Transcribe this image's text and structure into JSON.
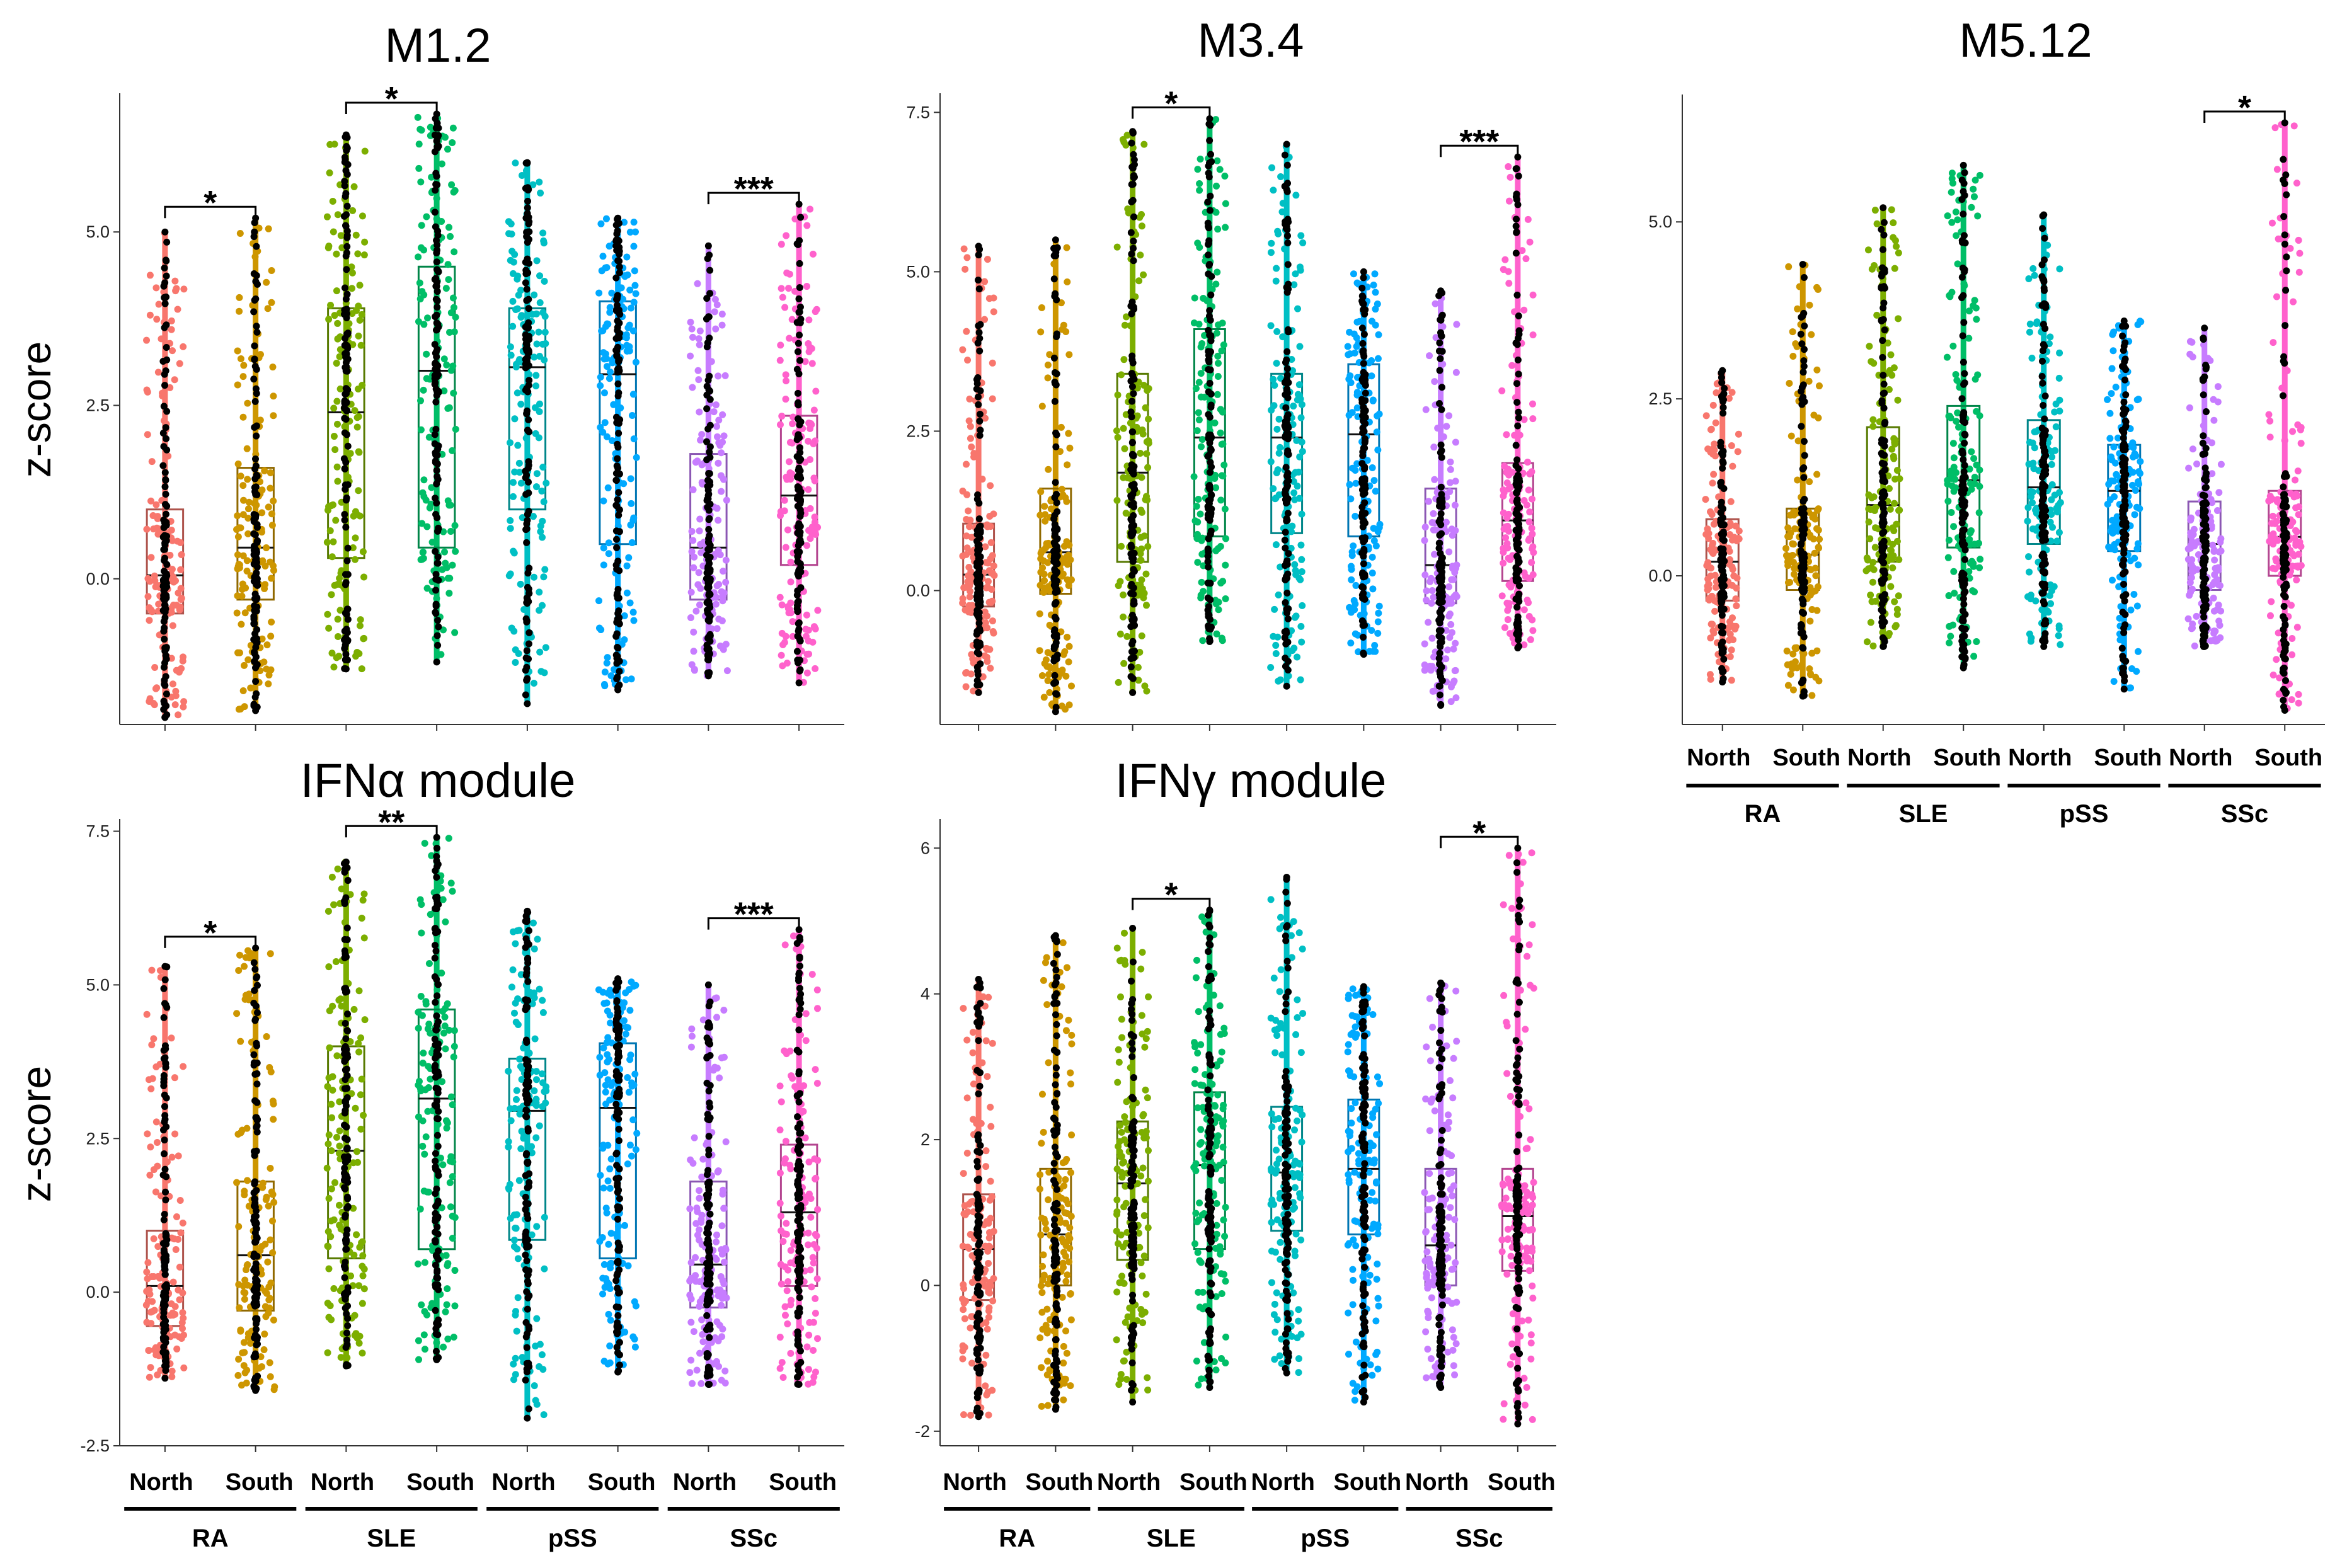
{
  "chart_data": [
    {
      "type": "box",
      "title": "M1.2",
      "ylabel": "z-score",
      "ylim": [
        -2.1,
        7.0
      ],
      "yticks": [
        "0.0",
        "2.5",
        "5.0"
      ],
      "categories": [
        "North",
        "South",
        "North",
        "South",
        "North",
        "South",
        "North",
        "South"
      ],
      "groups": [
        "RA",
        "SLE",
        "pSS",
        "SSc"
      ],
      "colors": [
        "#F8766D",
        "#CD9600",
        "#7CAE00",
        "#00BE67",
        "#00BFC4",
        "#00A9FF",
        "#C77CFF",
        "#FF61CC"
      ],
      "boxes": [
        {
          "min": -2.0,
          "q1": -0.5,
          "median": 0.05,
          "q3": 1.0,
          "max": 5.0
        },
        {
          "min": -1.9,
          "q1": -0.3,
          "median": 0.45,
          "q3": 1.6,
          "max": 5.2
        },
        {
          "min": -1.3,
          "q1": 0.3,
          "median": 2.4,
          "q3": 3.9,
          "max": 6.4
        },
        {
          "min": -1.2,
          "q1": 0.45,
          "median": 3.0,
          "q3": 4.5,
          "max": 6.7
        },
        {
          "min": -1.8,
          "q1": 1.0,
          "median": 3.05,
          "q3": 3.9,
          "max": 6.0
        },
        {
          "min": -1.6,
          "q1": 0.5,
          "median": 2.95,
          "q3": 4.0,
          "max": 5.2
        },
        {
          "min": -1.4,
          "q1": -0.3,
          "median": 0.45,
          "q3": 1.8,
          "max": 4.8
        },
        {
          "min": -1.5,
          "q1": 0.2,
          "median": 1.2,
          "q3": 2.35,
          "max": 5.4
        }
      ],
      "significance": [
        {
          "from": 0,
          "to": 1,
          "label": "*"
        },
        {
          "from": 2,
          "to": 3,
          "label": "*"
        },
        {
          "from": 6,
          "to": 7,
          "label": "***"
        }
      ]
    },
    {
      "type": "box",
      "title": "M3.4",
      "ylabel": "",
      "ylim": [
        -2.1,
        7.8
      ],
      "yticks": [
        "0.0",
        "2.5",
        "5.0",
        "7.5"
      ],
      "categories": [
        "North",
        "South",
        "North",
        "South",
        "North",
        "South",
        "North",
        "South"
      ],
      "groups": [
        "RA",
        "SLE",
        "pSS",
        "SSc"
      ],
      "colors": [
        "#F8766D",
        "#CD9600",
        "#7CAE00",
        "#00BE67",
        "#00BFC4",
        "#00A9FF",
        "#C77CFF",
        "#FF61CC"
      ],
      "boxes": [
        {
          "min": -1.6,
          "q1": -0.25,
          "median": 0.25,
          "q3": 1.05,
          "max": 5.4
        },
        {
          "min": -1.9,
          "q1": -0.05,
          "median": 0.6,
          "q3": 1.6,
          "max": 5.5
        },
        {
          "min": -1.6,
          "q1": 0.45,
          "median": 1.85,
          "q3": 3.4,
          "max": 7.2
        },
        {
          "min": -0.8,
          "q1": 0.85,
          "median": 2.4,
          "q3": 4.1,
          "max": 7.4
        },
        {
          "min": -1.5,
          "q1": 0.9,
          "median": 2.4,
          "q3": 3.4,
          "max": 7.0
        },
        {
          "min": -1.0,
          "q1": 0.85,
          "median": 2.45,
          "q3": 3.55,
          "max": 5.0
        },
        {
          "min": -1.8,
          "q1": -0.2,
          "median": 0.4,
          "q3": 1.6,
          "max": 4.7
        },
        {
          "min": -0.9,
          "q1": 0.15,
          "median": 1.1,
          "q3": 2.0,
          "max": 6.8
        }
      ],
      "significance": [
        {
          "from": 2,
          "to": 3,
          "label": "*"
        },
        {
          "from": 6,
          "to": 7,
          "label": "***"
        }
      ]
    },
    {
      "type": "box",
      "title": "M5.12",
      "ylabel": "",
      "ylim": [
        -2.1,
        6.8
      ],
      "yticks": [
        "0.0",
        "2.5",
        "5.0"
      ],
      "categories": [
        "North",
        "South",
        "North",
        "South",
        "North",
        "South",
        "North",
        "South"
      ],
      "groups": [
        "RA",
        "SLE",
        "pSS",
        "SSc"
      ],
      "colors": [
        "#F8766D",
        "#CD9600",
        "#7CAE00",
        "#00BE67",
        "#00BFC4",
        "#00A9FF",
        "#C77CFF",
        "#FF61CC"
      ],
      "boxes": [
        {
          "min": -1.5,
          "q1": -0.35,
          "median": 0.2,
          "q3": 0.8,
          "max": 2.9
        },
        {
          "min": -1.7,
          "q1": -0.2,
          "median": 0.3,
          "q3": 0.95,
          "max": 4.4
        },
        {
          "min": -1.0,
          "q1": 0.2,
          "median": 1.0,
          "q3": 2.1,
          "max": 5.2
        },
        {
          "min": -1.3,
          "q1": 0.4,
          "median": 1.35,
          "q3": 2.4,
          "max": 5.8
        },
        {
          "min": -1.0,
          "q1": 0.45,
          "median": 1.25,
          "q3": 2.2,
          "max": 5.1
        },
        {
          "min": -1.6,
          "q1": 0.35,
          "median": 1.2,
          "q3": 1.85,
          "max": 3.6
        },
        {
          "min": -1.0,
          "q1": -0.2,
          "median": 0.45,
          "q3": 1.05,
          "max": 3.5
        },
        {
          "min": -1.9,
          "q1": 0.0,
          "median": 0.55,
          "q3": 1.2,
          "max": 6.4
        }
      ],
      "significance": [
        {
          "from": 6,
          "to": 7,
          "label": "*"
        }
      ]
    },
    {
      "type": "box",
      "title": "IFNα module",
      "ylabel": "z-score",
      "ylim": [
        -2.5,
        7.7
      ],
      "yticks": [
        "-2.5",
        "0.0",
        "2.5",
        "5.0",
        "7.5"
      ],
      "categories": [
        "North",
        "South",
        "North",
        "South",
        "North",
        "South",
        "North",
        "South"
      ],
      "groups": [
        "RA",
        "SLE",
        "pSS",
        "SSc"
      ],
      "colors": [
        "#F8766D",
        "#CD9600",
        "#7CAE00",
        "#00BE67",
        "#00BFC4",
        "#00A9FF",
        "#C77CFF",
        "#FF61CC"
      ],
      "boxes": [
        {
          "min": -1.4,
          "q1": -0.55,
          "median": 0.1,
          "q3": 1.0,
          "max": 5.3
        },
        {
          "min": -1.6,
          "q1": -0.3,
          "median": 0.6,
          "q3": 1.8,
          "max": 5.6
        },
        {
          "min": -1.2,
          "q1": 0.55,
          "median": 2.3,
          "q3": 4.0,
          "max": 7.0
        },
        {
          "min": -1.1,
          "q1": 0.7,
          "median": 3.15,
          "q3": 4.6,
          "max": 7.4
        },
        {
          "min": -2.05,
          "q1": 0.85,
          "median": 2.95,
          "q3": 3.8,
          "max": 6.2
        },
        {
          "min": -1.3,
          "q1": 0.55,
          "median": 3.0,
          "q3": 4.05,
          "max": 5.1
        },
        {
          "min": -1.5,
          "q1": -0.25,
          "median": 0.45,
          "q3": 1.8,
          "max": 5.0
        },
        {
          "min": -1.5,
          "q1": 0.1,
          "median": 1.3,
          "q3": 2.4,
          "max": 5.9
        }
      ],
      "significance": [
        {
          "from": 0,
          "to": 1,
          "label": "*"
        },
        {
          "from": 2,
          "to": 3,
          "label": "**"
        },
        {
          "from": 6,
          "to": 7,
          "label": "***"
        }
      ]
    },
    {
      "type": "box",
      "title": "IFNγ module",
      "ylabel": "",
      "ylim": [
        -2.2,
        6.4
      ],
      "yticks": [
        "-2",
        "0",
        "2",
        "4",
        "6"
      ],
      "categories": [
        "North",
        "South",
        "North",
        "South",
        "North",
        "South",
        "North",
        "South"
      ],
      "groups": [
        "RA",
        "SLE",
        "pSS",
        "SSc"
      ],
      "colors": [
        "#F8766D",
        "#CD9600",
        "#7CAE00",
        "#00BE67",
        "#00BFC4",
        "#00A9FF",
        "#C77CFF",
        "#FF61CC"
      ],
      "boxes": [
        {
          "min": -1.8,
          "q1": -0.2,
          "median": 0.5,
          "q3": 1.25,
          "max": 4.2
        },
        {
          "min": -1.7,
          "q1": 0.0,
          "median": 0.7,
          "q3": 1.6,
          "max": 4.8
        },
        {
          "min": -1.6,
          "q1": 0.35,
          "median": 1.4,
          "q3": 2.25,
          "max": 4.9
        },
        {
          "min": -1.4,
          "q1": 0.5,
          "median": 1.65,
          "q3": 2.65,
          "max": 5.15
        },
        {
          "min": -1.2,
          "q1": 0.75,
          "median": 1.55,
          "q3": 2.45,
          "max": 5.6
        },
        {
          "min": -1.6,
          "q1": 0.7,
          "median": 1.6,
          "q3": 2.55,
          "max": 4.1
        },
        {
          "min": -1.4,
          "q1": 0.0,
          "median": 0.55,
          "q3": 1.6,
          "max": 4.15
        },
        {
          "min": -1.9,
          "q1": 0.2,
          "median": 0.95,
          "q3": 1.6,
          "max": 6.0
        }
      ],
      "significance": [
        {
          "from": 2,
          "to": 3,
          "label": "*"
        },
        {
          "from": 6,
          "to": 7,
          "label": "*"
        }
      ]
    }
  ]
}
